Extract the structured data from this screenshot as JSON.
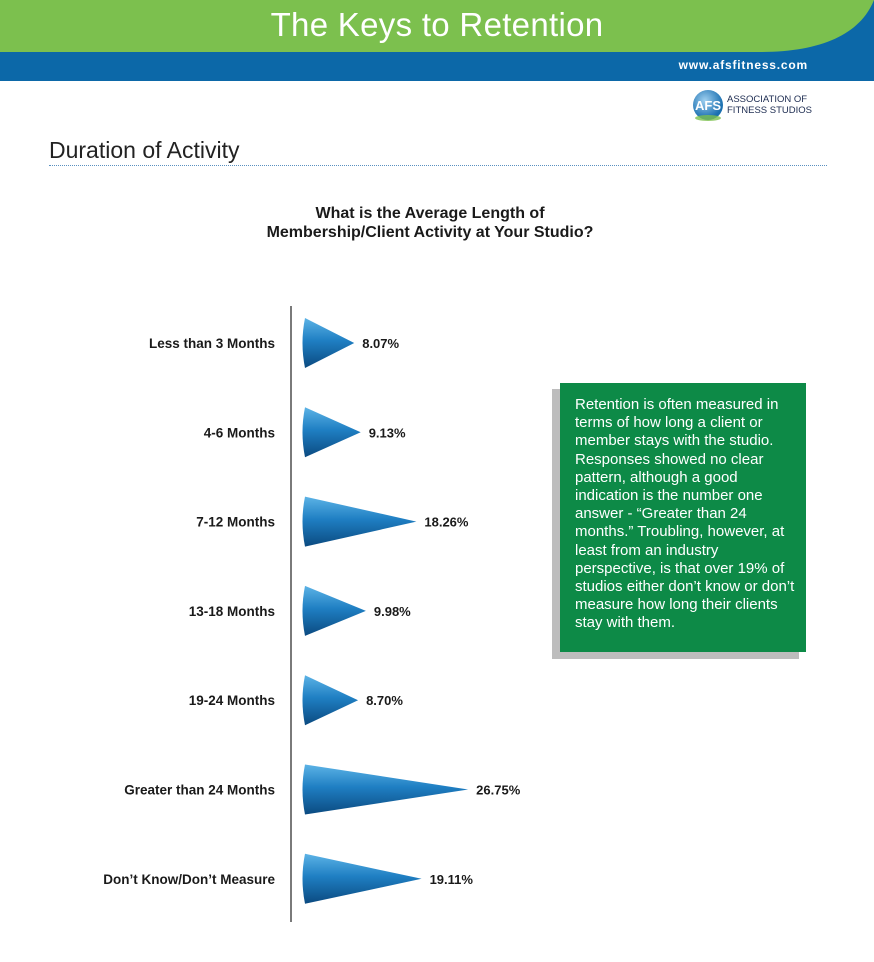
{
  "header": {
    "title": "The Keys to Retention",
    "website": "www.afsfitness.com",
    "logo_text_line1": "ASSOCIATION OF",
    "logo_text_line2": "FITNESS STUDIOS",
    "logo_letters": "AFS",
    "colors": {
      "green": "#7cc04e",
      "blue": "#0c68a8"
    }
  },
  "section": {
    "title": "Duration of Activity"
  },
  "chart_data": {
    "type": "bar",
    "orientation": "horizontal",
    "title_line1": "What is the Average Length of",
    "title_line2": "Membership/Client Activity at Your Studio?",
    "categories": [
      "Less than 3 Months",
      "4-6 Months",
      "7-12 Months",
      "13-18 Months",
      "19-24 Months",
      "Greater than 24 Months",
      "Don’t Know/Don’t Measure"
    ],
    "values": [
      8.07,
      9.13,
      18.26,
      9.98,
      8.7,
      26.75,
      19.11
    ],
    "value_labels": [
      "8.07%",
      "9.13%",
      "18.26%",
      "9.98%",
      "8.70%",
      "26.75%",
      "19.11%"
    ],
    "unit": "%",
    "bar_style": "cone",
    "bar_color": "#1a6fb0",
    "grid": false,
    "legend": "none"
  },
  "note": {
    "text": "Retention is often measured in terms of how long a client or member stays with the studio. Responses showed no clear pattern, although a good indication is the number one answer - “Greater than 24 months.” Troubling, however, at least from an industry perspective, is that over 19% of studios either don’t know or don’t measure how long their clients stay with them.",
    "background": "#0d8a47"
  }
}
